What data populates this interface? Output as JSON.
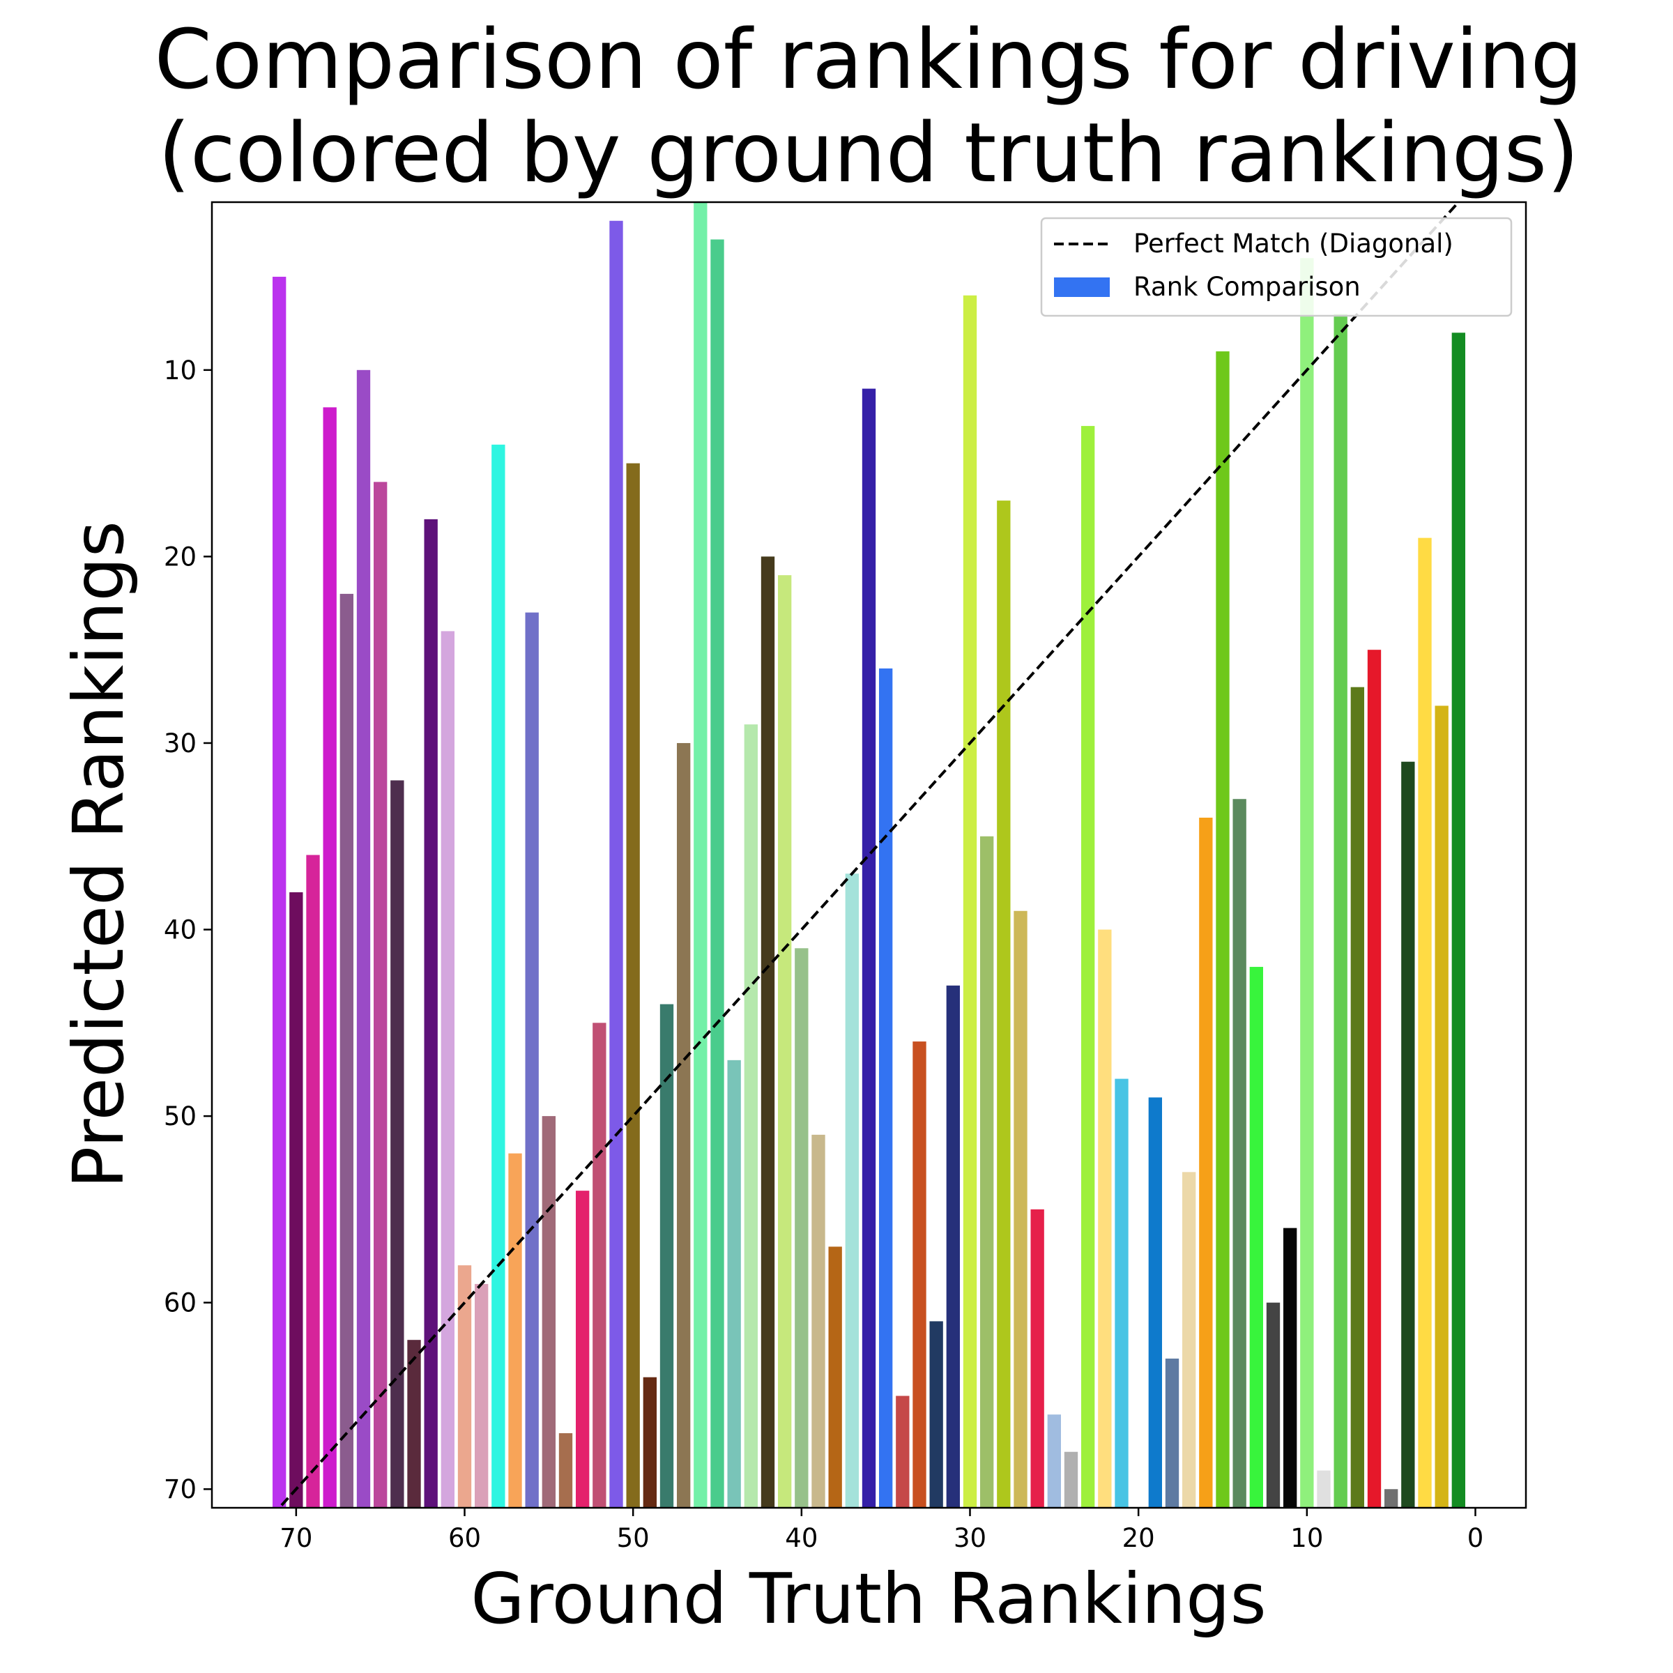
{
  "chart_data": {
    "type": "bar",
    "title_lines": [
      "Comparison of rankings for driving",
      "(colored by ground truth rankings)"
    ],
    "xlabel": "Ground Truth Rankings",
    "ylabel": "Predicted Rankings",
    "xlim": [
      75,
      -3
    ],
    "ylim": [
      71,
      1
    ],
    "x_ticks": [
      70,
      60,
      50,
      40,
      30,
      20,
      10,
      0
    ],
    "y_ticks": [
      10,
      20,
      30,
      40,
      50,
      60,
      70
    ],
    "legend": {
      "position": "upper right",
      "entries": [
        {
          "label": "Perfect Match (Diagonal)",
          "style": "dashed-line",
          "color": "#000000"
        },
        {
          "label": "Rank Comparison",
          "style": "patch",
          "color": "#3373f2"
        }
      ]
    },
    "diagonal": {
      "from": [
        0,
        0
      ],
      "to": [
        71,
        71
      ],
      "color": "#000000",
      "dashed": true
    },
    "bars": [
      {
        "x": 71,
        "y": 5,
        "color": "#bb33ee"
      },
      {
        "x": 70,
        "y": 38,
        "color": "#6e0d5e"
      },
      {
        "x": 69,
        "y": 36,
        "color": "#d6249a"
      },
      {
        "x": 68,
        "y": 12,
        "color": "#cd1ccc"
      },
      {
        "x": 67,
        "y": 22,
        "color": "#8b5c8e"
      },
      {
        "x": 66,
        "y": 10,
        "color": "#9a4bc6"
      },
      {
        "x": 65,
        "y": 16,
        "color": "#bb479c"
      },
      {
        "x": 64,
        "y": 32,
        "color": "#4e2e4e"
      },
      {
        "x": 63,
        "y": 62,
        "color": "#5a2a3c"
      },
      {
        "x": 62,
        "y": 18,
        "color": "#5e127a"
      },
      {
        "x": 61,
        "y": 24,
        "color": "#d4a6de"
      },
      {
        "x": 60,
        "y": 58,
        "color": "#eba78e"
      },
      {
        "x": 59,
        "y": 59,
        "color": "#daa0b8"
      },
      {
        "x": 58,
        "y": 14,
        "color": "#2ef5e1"
      },
      {
        "x": 57,
        "y": 52,
        "color": "#f8a458"
      },
      {
        "x": 56,
        "y": 23,
        "color": "#7070c8"
      },
      {
        "x": 55,
        "y": 50,
        "color": "#a06a78"
      },
      {
        "x": 54,
        "y": 67,
        "color": "#a66e4e"
      },
      {
        "x": 53,
        "y": 54,
        "color": "#e4216c"
      },
      {
        "x": 52,
        "y": 45,
        "color": "#c05074"
      },
      {
        "x": 51,
        "y": 2,
        "color": "#7d5ae8"
      },
      {
        "x": 50,
        "y": 15,
        "color": "#846b1c"
      },
      {
        "x": 49,
        "y": 64,
        "color": "#652a13"
      },
      {
        "x": 48,
        "y": 44,
        "color": "#397b6c"
      },
      {
        "x": 47,
        "y": 30,
        "color": "#8c7653"
      },
      {
        "x": 46,
        "y": 1,
        "color": "#73f0a8"
      },
      {
        "x": 45,
        "y": 3,
        "color": "#4acc8c"
      },
      {
        "x": 44,
        "y": 47,
        "color": "#79c4b8"
      },
      {
        "x": 43,
        "y": 29,
        "color": "#b5e8ac"
      },
      {
        "x": 42,
        "y": 20,
        "color": "#453a1c"
      },
      {
        "x": 41,
        "y": 21,
        "color": "#c6e87c"
      },
      {
        "x": 40,
        "y": 41,
        "color": "#97c18a"
      },
      {
        "x": 39,
        "y": 51,
        "color": "#c8b88c"
      },
      {
        "x": 38,
        "y": 57,
        "color": "#b56616"
      },
      {
        "x": 37,
        "y": 37,
        "color": "#a4e2da"
      },
      {
        "x": 36,
        "y": 11,
        "color": "#3520a8"
      },
      {
        "x": 35,
        "y": 26,
        "color": "#3373f2"
      },
      {
        "x": 34,
        "y": 65,
        "color": "#c54848"
      },
      {
        "x": 33,
        "y": 46,
        "color": "#c85020"
      },
      {
        "x": 32,
        "y": 61,
        "color": "#213a62"
      },
      {
        "x": 31,
        "y": 43,
        "color": "#26307a"
      },
      {
        "x": 30,
        "y": 6,
        "color": "#ccee44"
      },
      {
        "x": 29,
        "y": 35,
        "color": "#9dbf68"
      },
      {
        "x": 28,
        "y": 17,
        "color": "#aec71c"
      },
      {
        "x": 27,
        "y": 39,
        "color": "#cdb858"
      },
      {
        "x": 26,
        "y": 55,
        "color": "#e6204a"
      },
      {
        "x": 25,
        "y": 66,
        "color": "#a0bce0"
      },
      {
        "x": 24,
        "y": 68,
        "color": "#b0b0b0"
      },
      {
        "x": 23,
        "y": 13,
        "color": "#9ef03c"
      },
      {
        "x": 22,
        "y": 40,
        "color": "#ffde7e"
      },
      {
        "x": 21,
        "y": 48,
        "color": "#48c4e4"
      },
      {
        "x": 20,
        "y": 72,
        "color": "#ffffff"
      },
      {
        "x": 19,
        "y": 49,
        "color": "#0e7acc"
      },
      {
        "x": 18,
        "y": 63,
        "color": "#5e7aa2"
      },
      {
        "x": 17,
        "y": 53,
        "color": "#ecd8a8"
      },
      {
        "x": 16,
        "y": 34,
        "color": "#f6a018"
      },
      {
        "x": 15,
        "y": 9,
        "color": "#6ec81a"
      },
      {
        "x": 14,
        "y": 33,
        "color": "#5b8a5e"
      },
      {
        "x": 13,
        "y": 42,
        "color": "#38f43c"
      },
      {
        "x": 12,
        "y": 60,
        "color": "#444444"
      },
      {
        "x": 11,
        "y": 56,
        "color": "#050505"
      },
      {
        "x": 10,
        "y": 4,
        "color": "#8ff07c"
      },
      {
        "x": 9,
        "y": 69,
        "color": "#e0e0e0"
      },
      {
        "x": 8,
        "y": 7,
        "color": "#64cc50"
      },
      {
        "x": 7,
        "y": 27,
        "color": "#5d7a1a"
      },
      {
        "x": 6,
        "y": 25,
        "color": "#e6182a"
      },
      {
        "x": 5,
        "y": 70,
        "color": "#707070"
      },
      {
        "x": 4,
        "y": 31,
        "color": "#1f4a1f"
      },
      {
        "x": 3,
        "y": 19,
        "color": "#ffdb44"
      },
      {
        "x": 2,
        "y": 28,
        "color": "#d4b416"
      },
      {
        "x": 1,
        "y": 8,
        "color": "#138c22"
      }
    ]
  }
}
